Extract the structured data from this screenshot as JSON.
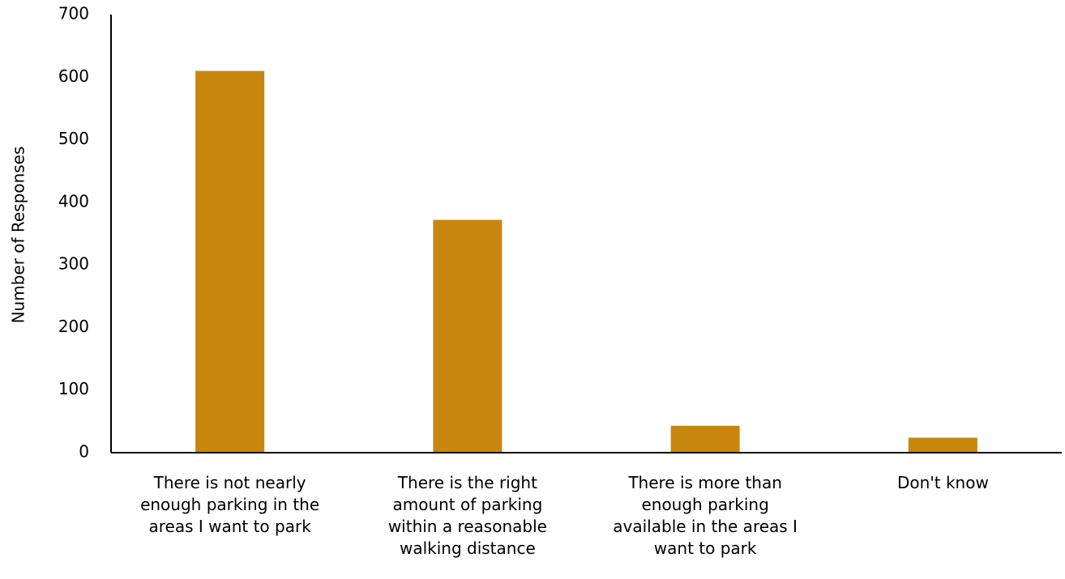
{
  "chart_data": {
    "type": "bar",
    "y_axis_label": "Number of Responses",
    "categories": [
      "There is not nearly enough parking in the areas I want to park",
      "There is the right amount of parking within a reasonable walking distance",
      "There is more than enough parking available in the areas I want to park",
      "Don't know"
    ],
    "values": [
      610,
      372,
      43,
      24
    ],
    "color": "#c8870c",
    "ylim": [
      0,
      700
    ],
    "yticks": [
      0,
      100,
      200,
      300,
      400,
      500,
      600,
      700
    ],
    "grid": false
  }
}
